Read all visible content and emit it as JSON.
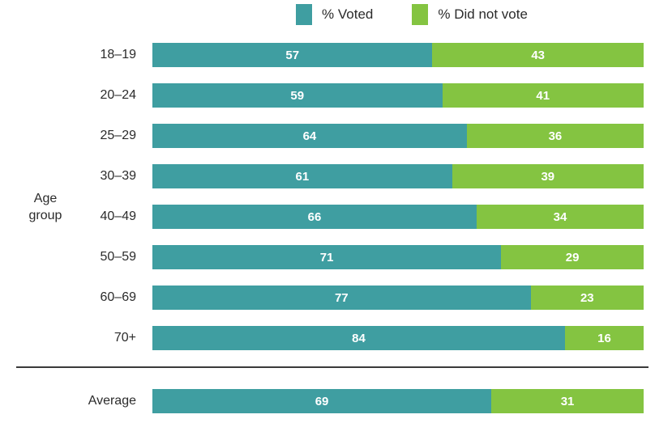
{
  "axis": {
    "label": "Age\ngroup"
  },
  "colors": {
    "voted": "#3F9EA1",
    "did_not_vote": "#84C441",
    "value_text": "#FFFFFF",
    "label_text": "#2B2B2B",
    "divider": "#3A3A3A",
    "background": "#FFFFFF"
  },
  "chart_data": {
    "type": "bar",
    "orientation": "horizontal",
    "stacked": true,
    "x_range": [
      0,
      100
    ],
    "grid": false,
    "legend_position": "top",
    "axis_label": "Age group",
    "legend": [
      {
        "label": "% Voted",
        "color": "#3F9EA1"
      },
      {
        "label": "% Did not vote",
        "color": "#84C441"
      }
    ],
    "categories": [
      "18–19",
      "20–24",
      "25–29",
      "30–39",
      "40–49",
      "50–59",
      "60–69",
      "70+",
      "Average"
    ],
    "series": [
      {
        "name": "% Voted",
        "values": [
          57,
          59,
          64,
          61,
          66,
          71,
          77,
          84,
          69
        ]
      },
      {
        "name": "% Did not vote",
        "values": [
          43,
          41,
          36,
          39,
          34,
          29,
          23,
          16,
          31
        ]
      }
    ],
    "rows": [
      {
        "label": "18–19",
        "voted": 57,
        "did_not_vote": 43,
        "is_average": false
      },
      {
        "label": "20–24",
        "voted": 59,
        "did_not_vote": 41,
        "is_average": false
      },
      {
        "label": "25–29",
        "voted": 64,
        "did_not_vote": 36,
        "is_average": false
      },
      {
        "label": "30–39",
        "voted": 61,
        "did_not_vote": 39,
        "is_average": false
      },
      {
        "label": "40–49",
        "voted": 66,
        "did_not_vote": 34,
        "is_average": false
      },
      {
        "label": "50–59",
        "voted": 71,
        "did_not_vote": 29,
        "is_average": false
      },
      {
        "label": "60–69",
        "voted": 77,
        "did_not_vote": 23,
        "is_average": false
      },
      {
        "label": "70+",
        "voted": 84,
        "did_not_vote": 16,
        "is_average": false
      },
      {
        "label": "Average",
        "voted": 69,
        "did_not_vote": 31,
        "is_average": true
      }
    ]
  }
}
